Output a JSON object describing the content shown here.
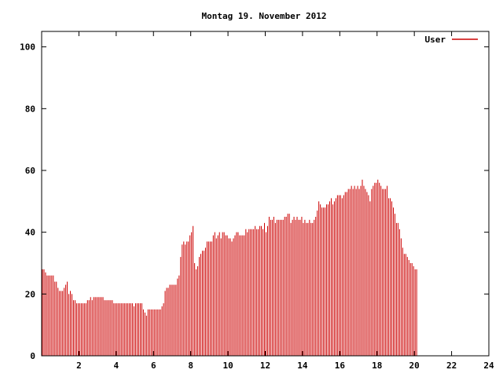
{
  "chart_data": {
    "type": "bar",
    "title": "Montag 19. November 2012",
    "xlabel": "",
    "ylabel": "",
    "xlim": [
      0,
      24
    ],
    "ylim": [
      0,
      105
    ],
    "xticks": [
      2,
      4,
      6,
      8,
      10,
      12,
      14,
      16,
      18,
      20,
      22,
      24
    ],
    "yticks": [
      0,
      20,
      40,
      60,
      80,
      100
    ],
    "grid": false,
    "legend_position": "top-right",
    "bar_color": "#cc0000",
    "series": [
      {
        "name": "User",
        "points_per_hour": 12,
        "values": [
          28,
          28,
          27,
          26,
          26,
          26,
          26,
          26,
          24,
          24,
          22,
          21,
          21,
          21,
          22,
          23,
          24,
          20,
          21,
          20,
          18,
          18,
          17,
          17,
          17,
          17,
          17,
          17,
          17,
          18,
          18,
          19,
          18,
          19,
          19,
          19,
          19,
          19,
          19,
          19,
          18,
          18,
          18,
          18,
          18,
          18,
          17,
          17,
          17,
          17,
          17,
          17,
          17,
          17,
          17,
          17,
          17,
          17,
          17,
          16,
          17,
          17,
          17,
          17,
          17,
          15,
          14,
          13,
          15,
          15,
          15,
          15,
          15,
          15,
          15,
          15,
          15,
          16,
          17,
          21,
          22,
          22,
          23,
          23,
          23,
          23,
          23,
          25,
          26,
          32,
          36,
          37,
          36,
          37,
          37,
          39,
          40,
          42,
          30,
          28,
          29,
          32,
          33,
          34,
          34,
          35,
          37,
          37,
          37,
          37,
          39,
          40,
          38,
          39,
          40,
          38,
          40,
          40,
          39,
          39,
          38,
          38,
          37,
          38,
          39,
          40,
          40,
          39,
          39,
          39,
          39,
          41,
          40,
          41,
          41,
          41,
          41,
          42,
          41,
          41,
          42,
          42,
          41,
          43,
          40,
          42,
          45,
          44,
          44,
          45,
          43,
          44,
          44,
          44,
          44,
          44,
          45,
          45,
          46,
          46,
          43,
          44,
          45,
          44,
          45,
          44,
          44,
          45,
          43,
          44,
          43,
          43,
          44,
          43,
          43,
          44,
          45,
          47,
          50,
          49,
          48,
          48,
          48,
          49,
          49,
          50,
          51,
          49,
          50,
          51,
          52,
          52,
          52,
          51,
          52,
          53,
          53,
          54,
          54,
          55,
          54,
          55,
          54,
          55,
          54,
          55,
          57,
          55,
          54,
          53,
          52,
          50,
          54,
          55,
          56,
          56,
          57,
          56,
          55,
          54,
          54,
          54,
          55,
          51,
          51,
          50,
          48,
          46,
          43,
          43,
          41,
          38,
          35,
          33,
          33,
          32,
          31,
          30,
          30,
          29,
          28,
          28
        ]
      }
    ]
  }
}
